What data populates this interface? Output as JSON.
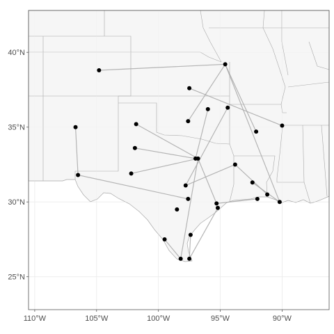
{
  "map": {
    "axes": {
      "x": {
        "range": [
          -110.5,
          -86.2
        ],
        "ticks": [
          {
            "value": -110,
            "label": "110°W"
          },
          {
            "value": -105,
            "label": "105°W"
          },
          {
            "value": -100,
            "label": "100°W"
          },
          {
            "value": -95,
            "label": "95°W"
          },
          {
            "value": -90,
            "label": "90°W"
          }
        ]
      },
      "y": {
        "range": [
          22.8,
          42.8
        ],
        "ticks": [
          {
            "value": 25,
            "label": "25°N"
          },
          {
            "value": 30,
            "label": "30°N"
          },
          {
            "value": 35,
            "label": "35°N"
          },
          {
            "value": 40,
            "label": "40°N"
          }
        ]
      }
    },
    "colors": {
      "land": "#f6f6f6",
      "borders": "#a8a8a8",
      "grid": "#ebebeb",
      "points": "#000000",
      "lines": "#a9a9a9",
      "frame": "#555555"
    },
    "points": [
      {
        "lon": -94.6,
        "lat": 39.2
      },
      {
        "lon": -104.8,
        "lat": 38.8
      },
      {
        "lon": -97.5,
        "lat": 37.6
      },
      {
        "lon": -96.0,
        "lat": 36.2
      },
      {
        "lon": -94.4,
        "lat": 36.3
      },
      {
        "lon": -97.6,
        "lat": 35.4
      },
      {
        "lon": -92.1,
        "lat": 34.7
      },
      {
        "lon": -90.0,
        "lat": 35.1
      },
      {
        "lon": -106.7,
        "lat": 35.0
      },
      {
        "lon": -106.5,
        "lat": 31.8
      },
      {
        "lon": -101.8,
        "lat": 35.2
      },
      {
        "lon": -101.9,
        "lat": 33.6
      },
      {
        "lon": -102.2,
        "lat": 31.9
      },
      {
        "lon": -97.0,
        "lat": 32.9
      },
      {
        "lon": -96.8,
        "lat": 32.9
      },
      {
        "lon": -93.8,
        "lat": 32.5
      },
      {
        "lon": -97.8,
        "lat": 31.1
      },
      {
        "lon": -92.4,
        "lat": 31.3
      },
      {
        "lon": -91.2,
        "lat": 30.5
      },
      {
        "lon": -97.6,
        "lat": 30.2
      },
      {
        "lon": -98.5,
        "lat": 29.5
      },
      {
        "lon": -95.3,
        "lat": 29.9
      },
      {
        "lon": -95.2,
        "lat": 29.6
      },
      {
        "lon": -92.0,
        "lat": 30.2
      },
      {
        "lon": -90.2,
        "lat": 30.0
      },
      {
        "lon": -97.4,
        "lat": 27.8
      },
      {
        "lon": -99.5,
        "lat": 27.5
      },
      {
        "lon": -98.2,
        "lat": 26.2
      },
      {
        "lon": -97.5,
        "lat": 26.2
      }
    ],
    "links": [
      [
        0,
        1
      ],
      [
        0,
        5
      ],
      [
        0,
        6
      ],
      [
        0,
        24
      ],
      [
        2,
        7
      ],
      [
        3,
        13
      ],
      [
        4,
        16
      ],
      [
        8,
        9
      ],
      [
        9,
        19
      ],
      [
        11,
        13
      ],
      [
        12,
        14
      ],
      [
        10,
        14
      ],
      [
        14,
        21
      ],
      [
        14,
        27
      ],
      [
        15,
        16
      ],
      [
        15,
        18
      ],
      [
        17,
        24
      ],
      [
        21,
        23
      ],
      [
        22,
        28
      ],
      [
        25,
        28
      ],
      [
        26,
        27
      ]
    ]
  }
}
